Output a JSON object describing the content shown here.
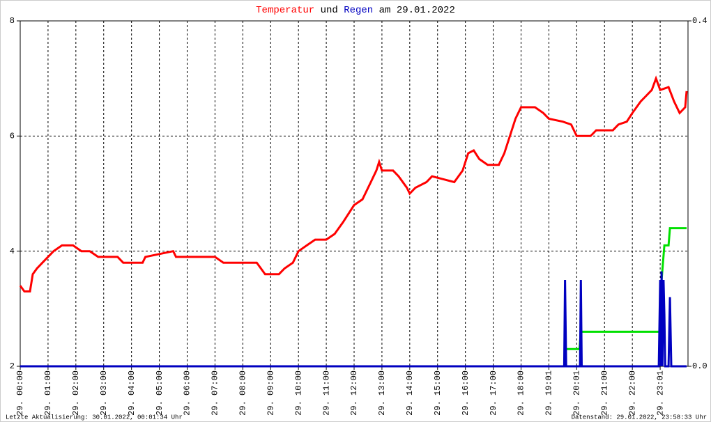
{
  "chart_data": {
    "type": "line",
    "title_words": [
      "und",
      "am 29.01.2022"
    ],
    "footer_left": "Letzte Aktualisierung: 30.01.2022, 00:01:34 Uhr",
    "footer_right": "Datenstand: 29.01.2022, 23:58:33 Uhr",
    "xlim": [
      0,
      24
    ],
    "xticks": [
      {
        "value": 0,
        "label": "29. 00:00"
      },
      {
        "value": 1,
        "label": "29. 01:00"
      },
      {
        "value": 2,
        "label": "29. 02:00"
      },
      {
        "value": 3,
        "label": "29. 03:00"
      },
      {
        "value": 4,
        "label": "29. 04:00"
      },
      {
        "value": 5,
        "label": "29. 05:00"
      },
      {
        "value": 6,
        "label": "29. 06:00"
      },
      {
        "value": 7,
        "label": "29. 07:00"
      },
      {
        "value": 8,
        "label": "29. 08:00"
      },
      {
        "value": 9,
        "label": "29. 09:00"
      },
      {
        "value": 10,
        "label": "29. 10:00"
      },
      {
        "value": 11,
        "label": "29. 11:00"
      },
      {
        "value": 12,
        "label": "29. 12:00"
      },
      {
        "value": 13,
        "label": "29. 13:00"
      },
      {
        "value": 14,
        "label": "29. 14:00"
      },
      {
        "value": 15,
        "label": "29. 15:00"
      },
      {
        "value": 16,
        "label": "29. 16:00"
      },
      {
        "value": 17,
        "label": "29. 17:00"
      },
      {
        "value": 18,
        "label": "29. 18:00"
      },
      {
        "value": 19,
        "label": "29. 19:01"
      },
      {
        "value": 20,
        "label": "29. 20:01"
      },
      {
        "value": 21,
        "label": "29. 21:00"
      },
      {
        "value": 22,
        "label": "29. 22:00"
      },
      {
        "value": 23,
        "label": "29. 23:01"
      }
    ],
    "ylim": [
      2,
      8
    ],
    "yticks": [
      2,
      4,
      6,
      8
    ],
    "y2lim": [
      0,
      0.4
    ],
    "y2ticks": [
      {
        "value": 0,
        "label": "0.0"
      },
      {
        "value": 0.4,
        "label": "0.4"
      }
    ],
    "grid": true,
    "series": [
      {
        "name": "Temperatur",
        "color": "#ff0000",
        "x": [
          0,
          0.15,
          0.35,
          0.45,
          0.6,
          0.8,
          1.0,
          1.2,
          1.5,
          1.9,
          2.2,
          2.5,
          2.8,
          3.5,
          3.7,
          4.4,
          4.5,
          5.0,
          5.5,
          5.6,
          7.0,
          7.3,
          8.5,
          8.8,
          9.3,
          9.5,
          9.8,
          10.0,
          10.3,
          10.6,
          11.0,
          11.3,
          11.6,
          12.0,
          12.3,
          12.6,
          12.8,
          12.9,
          13.0,
          13.4,
          13.6,
          13.9,
          14.0,
          14.2,
          14.6,
          14.8,
          15.2,
          15.6,
          15.9,
          16.1,
          16.3,
          16.5,
          16.8,
          17.2,
          17.4,
          17.6,
          17.8,
          18.0,
          18.5,
          18.8,
          19.0,
          19.5,
          19.8,
          20.0,
          20.5,
          20.7,
          21.3,
          21.5,
          21.8,
          22.0,
          22.3,
          22.5,
          22.7,
          22.85,
          23.0,
          23.3,
          23.5,
          23.7,
          23.9,
          23.95
        ],
        "values": [
          3.4,
          3.3,
          3.3,
          3.6,
          3.7,
          3.8,
          3.9,
          4.0,
          4.1,
          4.1,
          4.0,
          4.0,
          3.9,
          3.9,
          3.8,
          3.8,
          3.9,
          3.95,
          4.0,
          3.9,
          3.9,
          3.8,
          3.8,
          3.6,
          3.6,
          3.7,
          3.8,
          4.0,
          4.1,
          4.2,
          4.2,
          4.3,
          4.5,
          4.8,
          4.9,
          5.2,
          5.4,
          5.55,
          5.4,
          5.4,
          5.3,
          5.1,
          5.0,
          5.1,
          5.2,
          5.3,
          5.25,
          5.2,
          5.4,
          5.7,
          5.75,
          5.6,
          5.5,
          5.5,
          5.7,
          6.0,
          6.3,
          6.5,
          6.5,
          6.4,
          6.3,
          6.25,
          6.2,
          6.0,
          6.0,
          6.1,
          6.1,
          6.2,
          6.25,
          6.4,
          6.6,
          6.7,
          6.8,
          7.0,
          6.8,
          6.85,
          6.6,
          6.4,
          6.5,
          6.78
        ]
      },
      {
        "name": "Regen",
        "color": "#0000c0",
        "axis": "y2",
        "x": [
          0,
          19.55,
          19.58,
          19.62,
          20.12,
          20.15,
          20.18,
          22.95,
          23.0,
          23.03,
          23.05,
          23.08,
          23.12,
          23.15,
          23.18,
          23.3,
          23.35,
          23.4,
          23.95
        ],
        "values": [
          0,
          0,
          0.1,
          0,
          0,
          0.1,
          0,
          0,
          0.1,
          0,
          0.11,
          0,
          0.1,
          0.06,
          0,
          0,
          0.08,
          0,
          0
        ]
      },
      {
        "color": "#00e000",
        "axis": "y2",
        "x": [
          19.6,
          20.1,
          20.15,
          23.0,
          23.05,
          23.15,
          23.3,
          23.35,
          23.95
        ],
        "values": [
          0.02,
          0.02,
          0.04,
          0.04,
          0.1,
          0.14,
          0.14,
          0.16,
          0.16
        ]
      }
    ]
  }
}
